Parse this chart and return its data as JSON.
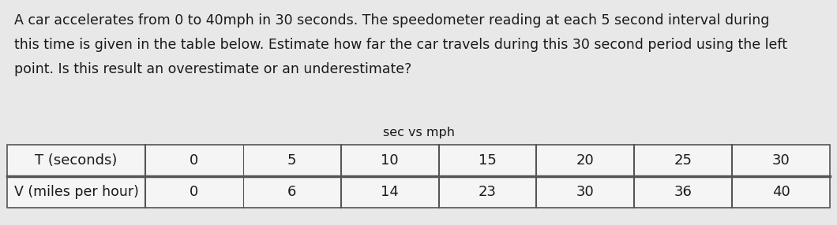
{
  "paragraph_lines": [
    "A car accelerates from 0 to 40mph in 30 seconds. The speedometer reading at each 5 second interval during",
    "this time is given in the table below. Estimate how far the car travels during this 30 second period using the left",
    "point. Is this result an overestimate or an underestimate?"
  ],
  "chart_title": "sec vs mph",
  "row1_label": "T (seconds)",
  "row2_label": "V (miles per hour)",
  "t_values": [
    "0",
    "5",
    "10",
    "15",
    "20",
    "25",
    "30"
  ],
  "v_values": [
    "0",
    "6",
    "14",
    "23",
    "30",
    "36",
    "40"
  ],
  "background_color": "#e8e8e8",
  "text_color": "#1a1a1a",
  "table_bg": "#f5f5f5",
  "font_size_paragraph": 12.5,
  "font_size_table": 13,
  "font_size_title": 11.5
}
